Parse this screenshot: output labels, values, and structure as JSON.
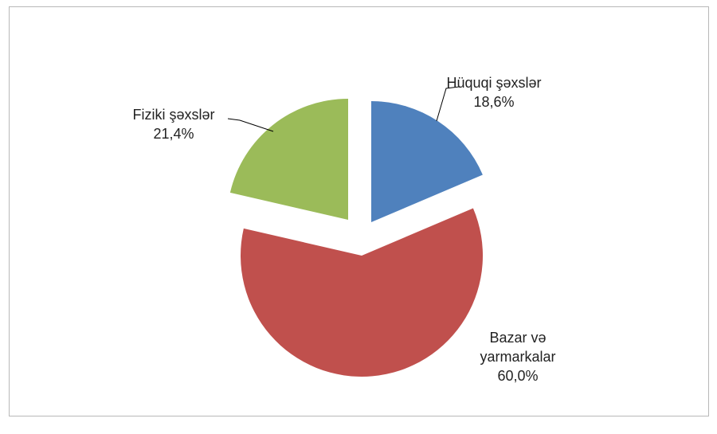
{
  "chart_data": {
    "type": "pie",
    "title": "",
    "slices": [
      {
        "label": "Hüquqi şəxslər",
        "value": 18.6,
        "display": "18,6%",
        "color": "#4f81bd"
      },
      {
        "label": "Bazar və yarmarkalar",
        "label_lines": [
          "Bazar və",
          "yarmarkalar"
        ],
        "value": 60.0,
        "display": "60,0%",
        "color": "#c0504d"
      },
      {
        "label": "Fiziki şəxslər",
        "value": 21.4,
        "display": "21,4%",
        "color": "#9bbb59"
      }
    ]
  }
}
